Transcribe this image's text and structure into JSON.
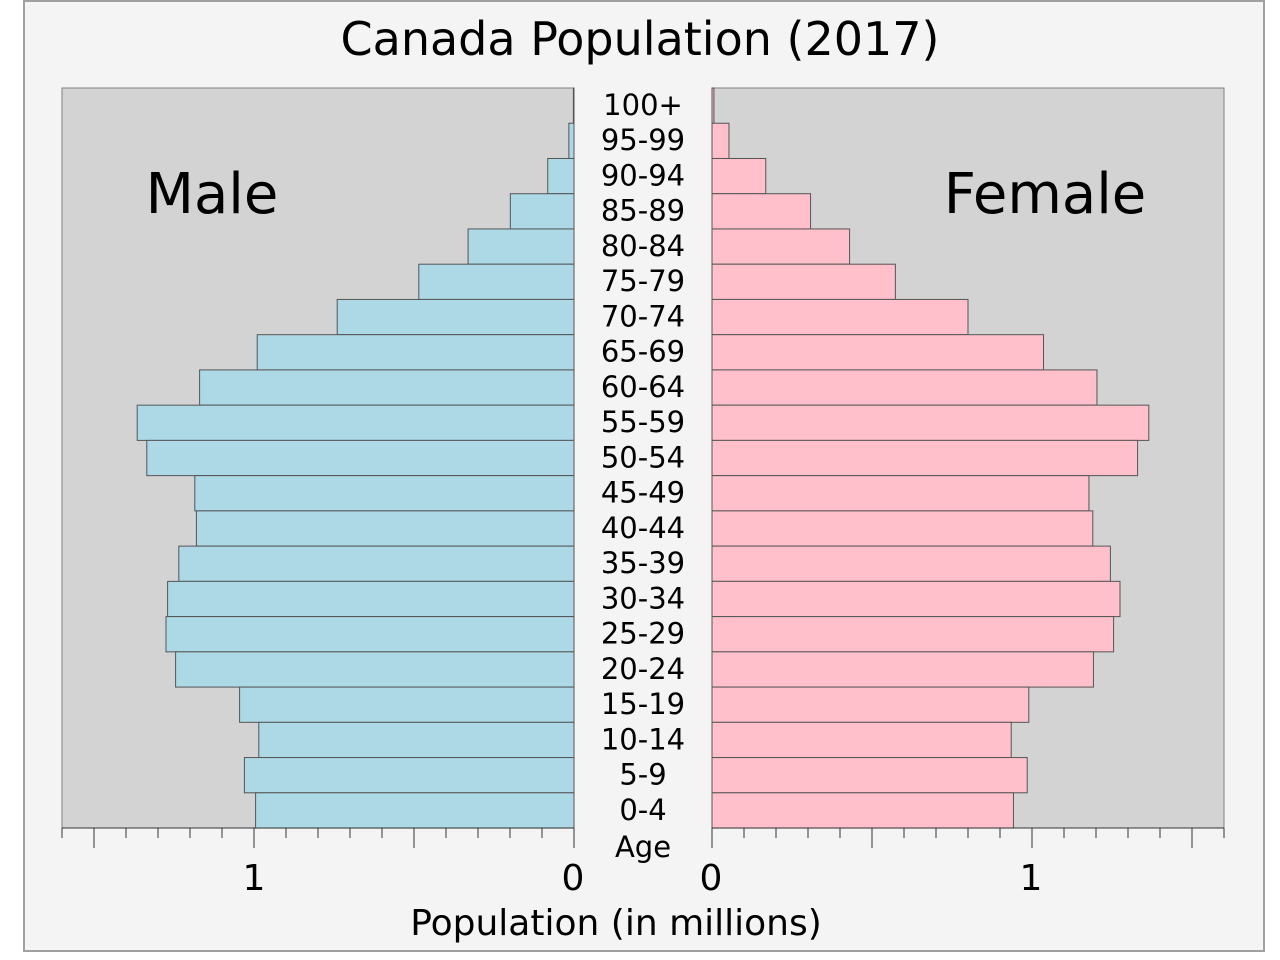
{
  "chart_data": {
    "type": "bar",
    "title": "Canada Population (2017)",
    "xlabel": "Population (in millions)",
    "ylabel": "Age",
    "xlim": [
      0,
      1.6
    ],
    "grid": false,
    "categories": [
      "100+",
      "95-99",
      "90-94",
      "85-89",
      "80-84",
      "75-79",
      "70-74",
      "65-69",
      "60-64",
      "55-59",
      "50-54",
      "45-49",
      "40-44",
      "35-39",
      "30-34",
      "25-29",
      "20-24",
      "15-19",
      "10-14",
      "5-9",
      "0-4"
    ],
    "series": [
      {
        "name": "Male",
        "color": "#add8e6",
        "values": [
          0.002,
          0.016,
          0.082,
          0.199,
          0.331,
          0.485,
          0.74,
          0.99,
          1.17,
          1.365,
          1.335,
          1.185,
          1.18,
          1.235,
          1.27,
          1.275,
          1.245,
          1.045,
          0.985,
          1.03,
          0.995
        ]
      },
      {
        "name": "Female",
        "color": "#ffc0cb",
        "values": [
          0.006,
          0.053,
          0.168,
          0.308,
          0.43,
          0.573,
          0.8,
          1.036,
          1.203,
          1.365,
          1.33,
          1.178,
          1.19,
          1.245,
          1.275,
          1.255,
          1.192,
          0.99,
          0.935,
          0.985,
          0.942
        ]
      }
    ],
    "tick_labels": {
      "male": [
        "1",
        "0"
      ],
      "female": [
        "0",
        "1"
      ]
    }
  }
}
